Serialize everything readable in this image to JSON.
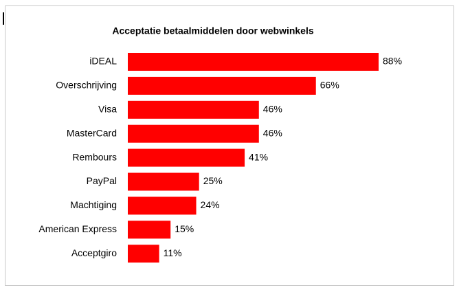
{
  "chart_data": {
    "type": "bar",
    "orientation": "horizontal",
    "title": "Acceptatie betaalmiddelen door webwinkels",
    "categories": [
      "iDEAL",
      "Overschrijving",
      "Visa",
      "MasterCard",
      "Rembours",
      "PayPal",
      "Machtiging",
      "American Express",
      "Acceptgiro"
    ],
    "values": [
      88,
      66,
      46,
      46,
      41,
      25,
      24,
      15,
      11
    ],
    "value_labels": [
      "88%",
      "66%",
      "46%",
      "46%",
      "41%",
      "25%",
      "24%",
      "15%",
      "11%"
    ],
    "color": "#ff0000"
  }
}
